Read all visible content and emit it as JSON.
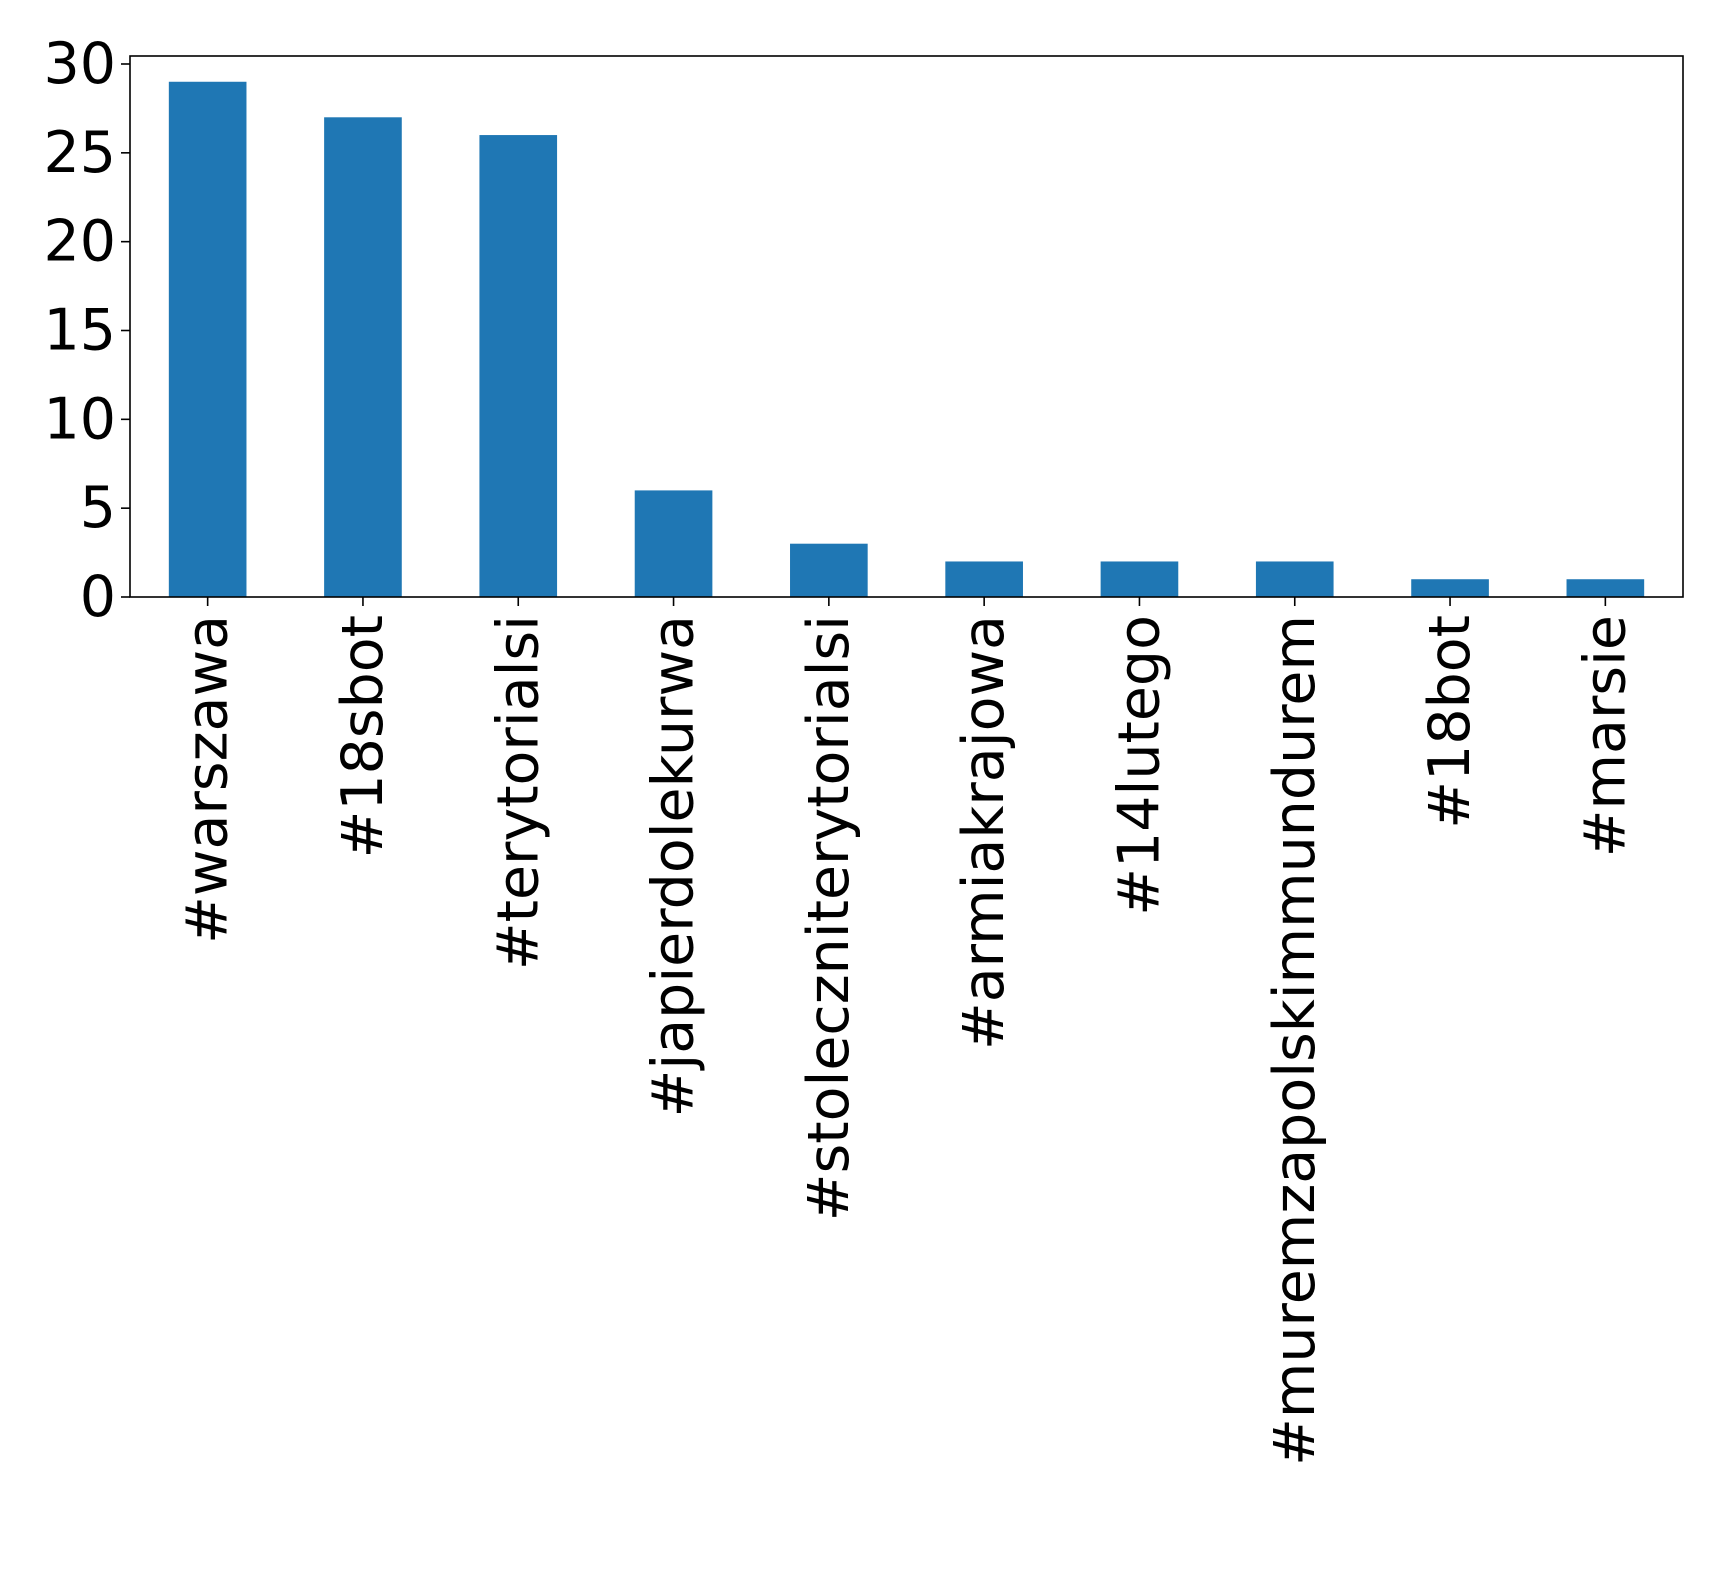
{
  "colors": {
    "bar": "#1f77b4",
    "axis": "#000000",
    "background": "#ffffff"
  },
  "chart_data": {
    "type": "bar",
    "title": "",
    "xlabel": "",
    "ylabel": "",
    "categories": [
      "#warszawa",
      "#18sbot",
      "#terytorialsi",
      "#japierdolekurwa",
      "#stoleczniterytorialsi",
      "#armiakrajowa",
      "#14lutego",
      "#muremzapolskimmundurem",
      "#18bot",
      "#marsie"
    ],
    "values": [
      29,
      27,
      26,
      6,
      3,
      2,
      2,
      2,
      1,
      1
    ],
    "ylim": [
      0,
      30.45
    ],
    "yticks": [
      0,
      5,
      10,
      15,
      20,
      25,
      30
    ],
    "grid": false,
    "legend": "none",
    "x_tick_rotation": "vertical"
  }
}
